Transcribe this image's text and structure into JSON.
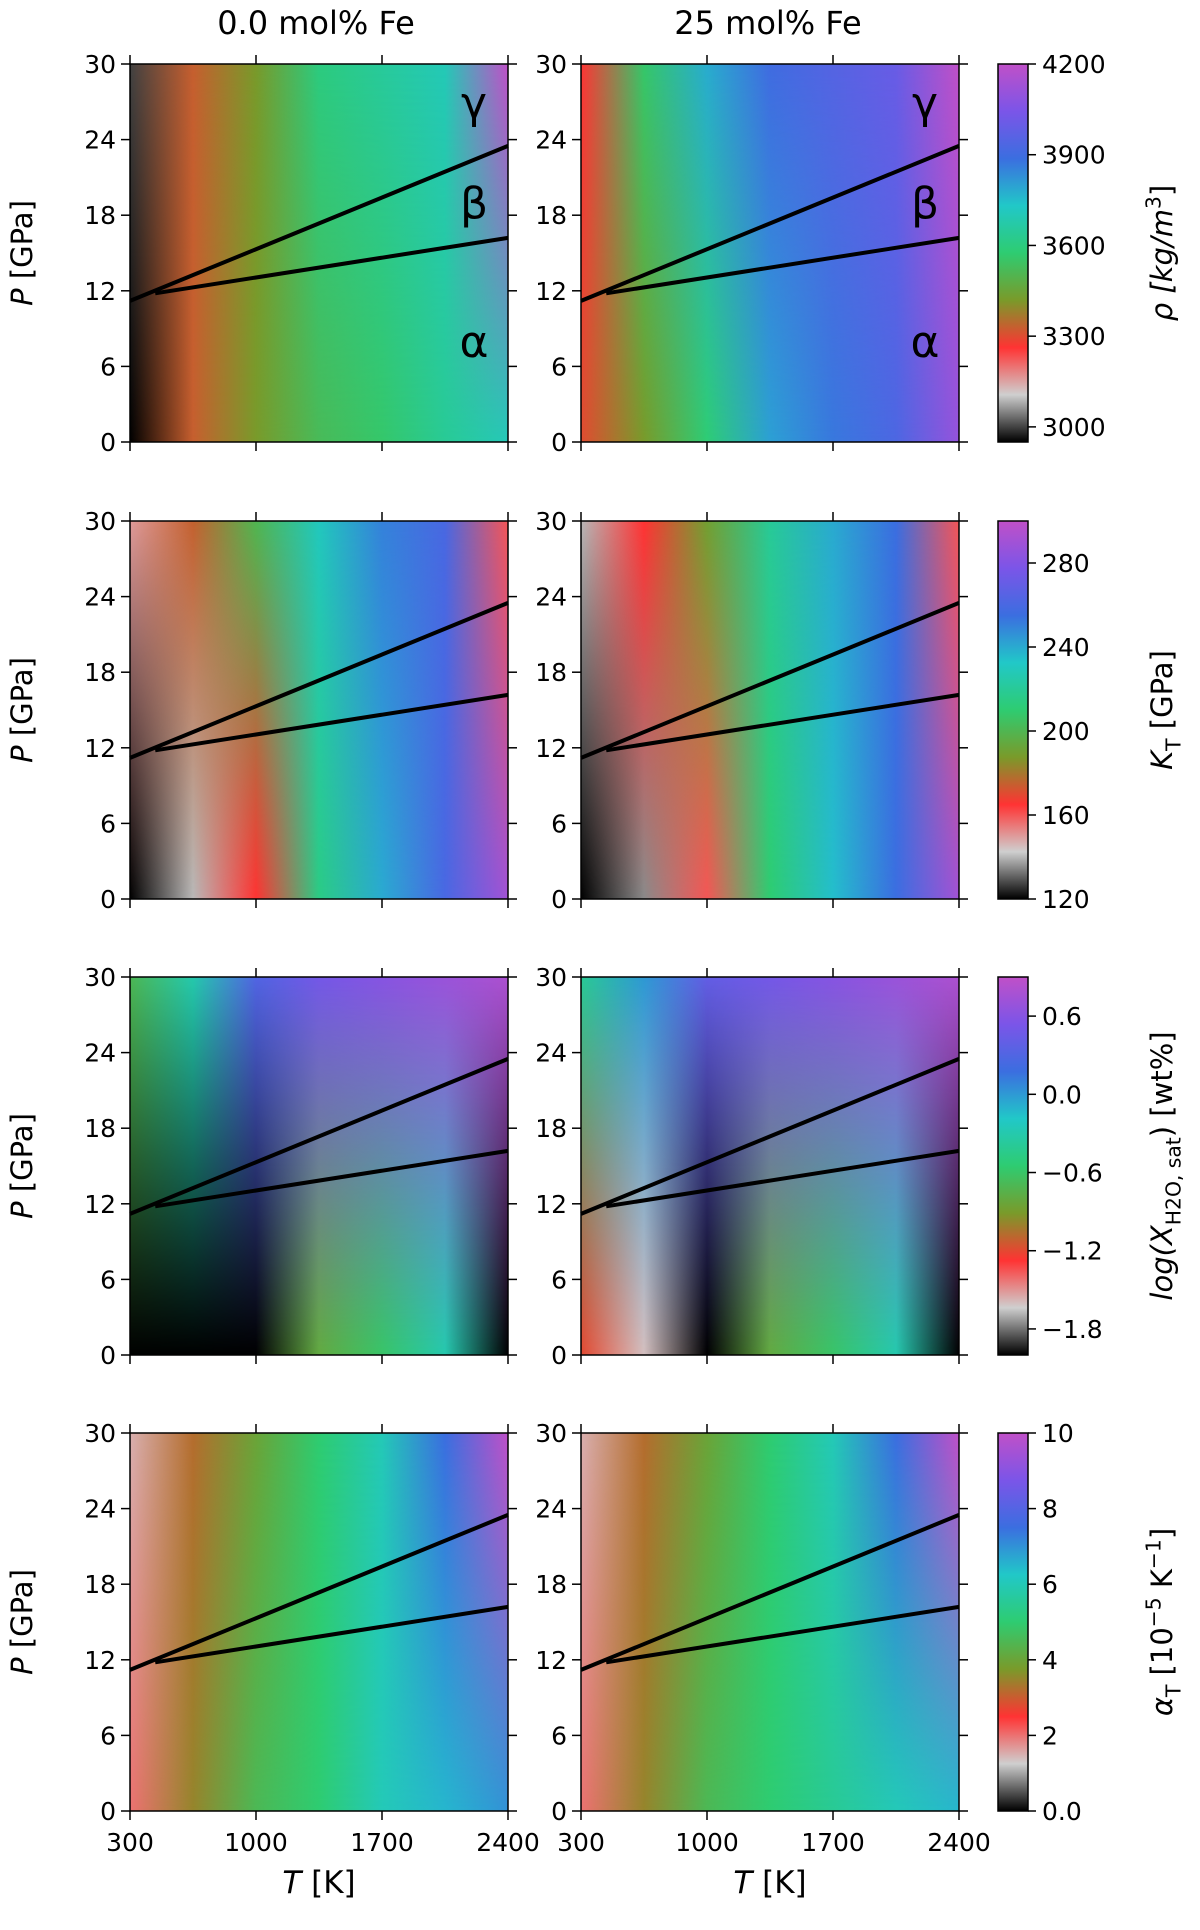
{
  "figure": {
    "column_titles": [
      "0.0 mol% Fe",
      "25 mol% Fe"
    ],
    "xlabel_var": "T",
    "xlabel_unit": " [K]",
    "ylabel_var": "P",
    "ylabel_unit": " [GPa]",
    "phase_labels": [
      "γ",
      "β",
      "α"
    ]
  },
  "chart_data": {
    "type": "heatmap",
    "layout": "4 rows x 2 columns of pressure-temperature maps with one shared colorbar per row",
    "x": {
      "label": "T [K]",
      "range": [
        300,
        2400
      ],
      "ticks": [
        300,
        1000,
        1700,
        2400
      ]
    },
    "y": {
      "label": "P [GPa]",
      "range": [
        0,
        30
      ],
      "ticks": [
        0,
        6,
        12,
        18,
        24,
        30
      ]
    },
    "phase_boundaries": {
      "alpha_beta": [
        [
          440,
          11.8
        ],
        [
          2400,
          16.2
        ]
      ],
      "beta_gamma": [
        [
          300,
          11.2
        ],
        [
          2400,
          23.5
        ]
      ],
      "triple_point": [
        440,
        11.8
      ],
      "phases": [
        "α",
        "β",
        "γ"
      ]
    },
    "colorbar_stops": [
      "#000000",
      "#cfcfcf",
      "#ff3333",
      "#7a9a2a",
      "#2ecc71",
      "#21c8c8",
      "#3b6ee0",
      "#7b55e8",
      "#c050c8"
    ],
    "rows": [
      {
        "quantity": "density",
        "colorbar_label": "ρ [kg/m3]",
        "colorbar_label_main": "ρ [kg/m",
        "colorbar_label_sup": "3",
        "colorbar_label_end": "]",
        "range": [
          2950,
          4200
        ],
        "ticks": [
          3000,
          3300,
          3600,
          3900,
          4200
        ],
        "panels": [
          {
            "composition": "0.0 mol% Fe",
            "values": [
              [
                3000,
                3330,
                3420,
                3600,
                3650,
                3700,
                4200
              ],
              [
                2950,
                3330,
                3420,
                3520,
                3560,
                3640,
                3700
              ]
            ]
          },
          {
            "composition": "25 mol% Fe",
            "values": [
              [
                3260,
                3560,
                3780,
                3900,
                3950,
                4000,
                4200
              ],
              [
                3300,
                3420,
                3580,
                3800,
                3870,
                3930,
                4100
              ]
            ]
          }
        ]
      },
      {
        "quantity": "isothermal bulk modulus",
        "colorbar_label": "K_T [GPa]",
        "colorbar_label_main": "K",
        "colorbar_label_sub": "T",
        "colorbar_label_end": " [GPa]",
        "range": [
          120,
          300
        ],
        "ticks": [
          120,
          160,
          200,
          240,
          280
        ],
        "panels": [
          {
            "composition": "0.0 mol% Fe",
            "values": [
              [
                150,
                175,
                200,
                230,
                250,
                260,
                160
              ],
              [
                120,
                140,
                165,
                215,
                240,
                260,
                290
              ]
            ]
          },
          {
            "composition": "25 mol% Fe",
            "values": [
              [
                140,
                165,
                190,
                220,
                240,
                255,
                160
              ],
              [
                120,
                135,
                160,
                210,
                235,
                255,
                290
              ]
            ]
          }
        ]
      },
      {
        "quantity": "water storage capacity",
        "colorbar_label": "log(X_H2O,sat) [wt%]",
        "colorbar_label_main": "log(X",
        "colorbar_label_sub": "H2O, sat",
        "colorbar_label_end": ") [wt%]",
        "range": [
          -2.0,
          0.9
        ],
        "ticks": [
          -1.8,
          -1.2,
          -0.6,
          0.0,
          0.6
        ],
        "panels": [
          {
            "composition": "0.0 mol% Fe",
            "values": [
              [
                -0.7,
                -0.3,
                0.3,
                0.5,
                0.6,
                0.7,
                0.8
              ],
              [
                -2.0,
                -2.0,
                -2.0,
                -0.8,
                -0.6,
                -0.3,
                -2.0
              ]
            ]
          },
          {
            "composition": "25 mol% Fe",
            "values": [
              [
                -0.4,
                0.0,
                0.4,
                0.5,
                0.6,
                0.7,
                0.8
              ],
              [
                -1.2,
                -1.6,
                -2.0,
                -0.8,
                -0.6,
                -0.3,
                -2.0
              ]
            ]
          }
        ]
      },
      {
        "quantity": "thermal expansivity",
        "colorbar_label": "α_T [10^-5 K^-1]",
        "colorbar_label_main": "α",
        "colorbar_label_sub": "T",
        "colorbar_label_mid": " [10",
        "colorbar_label_sup": "−5",
        "colorbar_label_mid2": " K",
        "colorbar_label_sup2": "−1",
        "colorbar_label_end": "]",
        "range": [
          0,
          10
        ],
        "ticks": [
          0,
          2,
          4,
          6,
          8,
          10
        ],
        "panels": [
          {
            "composition": "0.0 mol% Fe",
            "values": [
              [
                1.5,
                3.2,
                4.0,
                5.0,
                6.0,
                7.5,
                10.0
              ],
              [
                2.0,
                3.5,
                4.5,
                5.0,
                6.0,
                6.5,
                7.0
              ]
            ]
          },
          {
            "composition": "25 mol% Fe",
            "values": [
              [
                1.5,
                3.2,
                4.0,
                5.0,
                6.0,
                7.5,
                10.0
              ],
              [
                2.0,
                3.5,
                4.5,
                5.0,
                5.5,
                6.0,
                6.5
              ]
            ]
          }
        ]
      }
    ]
  }
}
